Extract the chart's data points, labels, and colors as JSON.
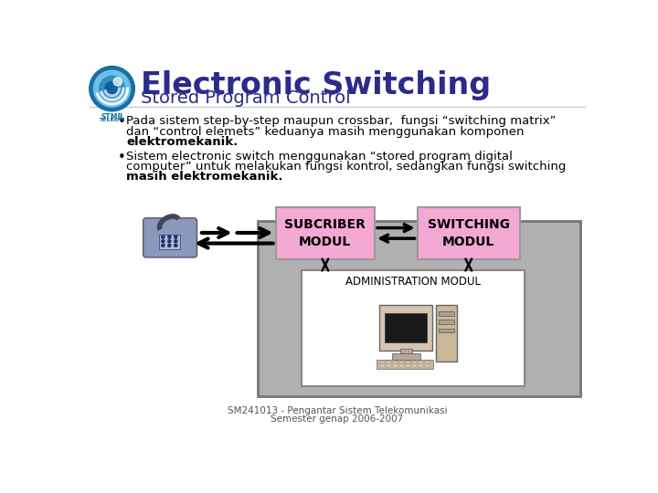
{
  "title": "Electronic Switching",
  "subtitle": "Stored Program Control",
  "title_color": "#2b2b8c",
  "subtitle_color": "#2b2b8c",
  "bg_color": "#ffffff",
  "b1_l1": "Pada sistem step-by-step maupun crossbar,  fungsi “switching matrix”",
  "b1_l2": "dan “control elemets” keduanya masih menggunakan komponen",
  "b1_l3": "elektromekanik.",
  "b2_l1": "Sistem electronic switch menggunakan “stored program digital",
  "b2_l2": "computer” untuk melakukan fungsi kontrol, sedangkan fungsi switching",
  "b2_l3": "masih elektromekanik.",
  "box_label1": "SUBCRIBER\nMODUL",
  "box_label2": "SWITCHING\nMODUL",
  "box_label3": "ADMINISTRATION MODUL",
  "footer1": "SM241013 - Pengantar Sistem Telekomunikasi",
  "footer2": "Semester genap 2006-2007",
  "pink_color": "#f4a8d4",
  "gray_outer": "#b0b0b0",
  "white_inner": "#ffffff",
  "text_color": "#000000",
  "footer_color": "#555555",
  "logo_outer": "#1a70a0",
  "logo_mid": "#4aa8d0",
  "logo_inner": "#2060a0",
  "logo_white": "#ffffff",
  "stmb_color": "#1a70a0"
}
